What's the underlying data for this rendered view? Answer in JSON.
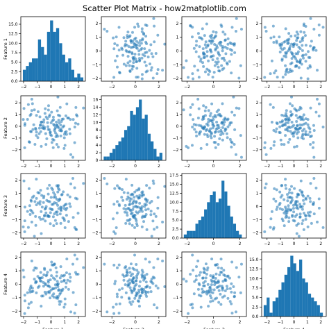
{
  "figure": {
    "title": "Scatter Plot Matrix - how2matplotlib.com",
    "point_color": "#1f77b4",
    "bar_color": "#1f77b4"
  },
  "chart_data": {
    "type": "scatter",
    "grid": false,
    "features": [
      "Feature 1",
      "Feature 2",
      "Feature 3",
      "Feature 4"
    ],
    "diagonal_type": "bar",
    "histograms": [
      {
        "feature": "Feature 1",
        "bin_edges": [
          -2.05,
          -1.83,
          -1.61,
          -1.39,
          -1.17,
          -0.95,
          -0.73,
          -0.51,
          -0.29,
          -0.07,
          0.15,
          0.37,
          0.59,
          0.81,
          1.03,
          1.25,
          1.47,
          1.69,
          1.91,
          2.13,
          2.35
        ],
        "counts": [
          3,
          4,
          5,
          6,
          6,
          11,
          9,
          7,
          13,
          16,
          13,
          14,
          10,
          7,
          5,
          6,
          3,
          1,
          2,
          1
        ],
        "ylim": [
          0,
          17
        ],
        "yticks": [
          0.0,
          2.5,
          5.0,
          7.5,
          10.0,
          12.5,
          15.0
        ],
        "xlim": [
          -2.2,
          2.5
        ],
        "xticks": [
          -2,
          -1,
          0,
          1,
          2
        ]
      },
      {
        "feature": "Feature 2",
        "bin_edges": [
          -2.7,
          -2.45,
          -2.2,
          -1.95,
          -1.7,
          -1.45,
          -1.2,
          -0.95,
          -0.7,
          -0.45,
          -0.2,
          0.05,
          0.3,
          0.55,
          0.8,
          1.05,
          1.3,
          1.55,
          1.8,
          2.05,
          2.3
        ],
        "counts": [
          1,
          1,
          2,
          3,
          4,
          5,
          6,
          8,
          9,
          13,
          12,
          14,
          16,
          11,
          12,
          7,
          5,
          3,
          1,
          2
        ],
        "ylim": [
          0,
          17
        ],
        "yticks": [
          0,
          2,
          4,
          6,
          8,
          10,
          12,
          14,
          16
        ],
        "xlim": [
          -2.9,
          2.6
        ],
        "xticks": [
          -2,
          0,
          2
        ]
      },
      {
        "feature": "Feature 3",
        "bin_edges": [
          -2.25,
          -2.03,
          -1.81,
          -1.59,
          -1.37,
          -1.15,
          -0.93,
          -0.71,
          -0.49,
          -0.27,
          -0.05,
          0.17,
          0.39,
          0.61,
          0.83,
          1.05,
          1.27,
          1.49,
          1.71,
          1.93,
          2.15
        ],
        "counts": [
          1,
          2,
          2,
          2,
          4,
          5,
          6,
          8,
          10,
          12,
          13,
          10,
          11,
          16,
          13,
          9,
          6,
          4,
          2,
          1
        ],
        "ylim": [
          0,
          18
        ],
        "yticks": [
          0.0,
          2.5,
          5.0,
          7.5,
          10.0,
          12.5,
          15.0,
          17.5
        ],
        "xlim": [
          -2.4,
          2.5
        ],
        "xticks": [
          -2,
          0,
          2
        ]
      },
      {
        "feature": "Feature 4",
        "bin_edges": [
          -2.25,
          -2.03,
          -1.81,
          -1.59,
          -1.37,
          -1.15,
          -0.93,
          -0.71,
          -0.49,
          -0.27,
          -0.05,
          0.17,
          0.39,
          0.61,
          0.83,
          1.05,
          1.27,
          1.49,
          1.71,
          1.93,
          2.15
        ],
        "counts": [
          3,
          5,
          1,
          4,
          5,
          7,
          9,
          11,
          13,
          16,
          14,
          12,
          15,
          10,
          9,
          6,
          5,
          4,
          3,
          1
        ],
        "ylim": [
          0,
          17
        ],
        "yticks": [
          0.0,
          2.5,
          5.0,
          7.5,
          10.0,
          12.5,
          15.0
        ],
        "xlim": [
          -2.4,
          2.4
        ],
        "xticks": [
          -2,
          -1,
          0,
          1,
          2
        ]
      }
    ],
    "scatter_panels": [
      {
        "row": 0,
        "col": 1,
        "xlim": [
          -2.9,
          2.6
        ],
        "ylim": [
          -2.2,
          2.5
        ],
        "xticks": [
          -2,
          0,
          2
        ],
        "yticks": [
          -2,
          -1,
          0,
          1,
          2
        ]
      },
      {
        "row": 0,
        "col": 2,
        "xlim": [
          -2.4,
          2.5
        ],
        "ylim": [
          -2.2,
          2.5
        ],
        "xticks": [
          -2,
          0,
          2
        ],
        "yticks": [
          -2,
          -1,
          0,
          1,
          2
        ]
      },
      {
        "row": 0,
        "col": 3,
        "xlim": [
          -2.4,
          2.4
        ],
        "ylim": [
          -2.2,
          2.5
        ],
        "xticks": [
          -2,
          -1,
          0,
          1,
          2
        ],
        "yticks": [
          -2,
          -1,
          0,
          1,
          2
        ]
      },
      {
        "row": 1,
        "col": 0,
        "xlim": [
          -2.2,
          2.5
        ],
        "ylim": [
          -2.9,
          2.6
        ],
        "xticks": [
          -2,
          -1,
          0,
          1,
          2
        ],
        "yticks": [
          -2,
          -1,
          0,
          1,
          2
        ]
      },
      {
        "row": 1,
        "col": 2,
        "xlim": [
          -2.4,
          2.5
        ],
        "ylim": [
          -2.9,
          2.6
        ],
        "xticks": [
          -2,
          0,
          2
        ],
        "yticks": [
          -2,
          -1,
          0,
          1,
          2
        ]
      },
      {
        "row": 1,
        "col": 3,
        "xlim": [
          -2.4,
          2.4
        ],
        "ylim": [
          -2.9,
          2.6
        ],
        "xticks": [
          -2,
          -1,
          0,
          1,
          2
        ],
        "yticks": [
          -2,
          -1,
          0,
          1,
          2
        ]
      },
      {
        "row": 2,
        "col": 0,
        "xlim": [
          -2.2,
          2.5
        ],
        "ylim": [
          -2.4,
          2.5
        ],
        "xticks": [
          -2,
          -1,
          0,
          1,
          2
        ],
        "yticks": [
          -2,
          -1,
          0,
          1,
          2
        ]
      },
      {
        "row": 2,
        "col": 1,
        "xlim": [
          -2.9,
          2.6
        ],
        "ylim": [
          -2.4,
          2.5
        ],
        "xticks": [
          -2,
          0,
          2
        ],
        "yticks": [
          -2,
          -1,
          0,
          1,
          2
        ]
      },
      {
        "row": 2,
        "col": 3,
        "xlim": [
          -2.4,
          2.4
        ],
        "ylim": [
          -2.4,
          2.5
        ],
        "xticks": [
          -2,
          -1,
          0,
          1,
          2
        ],
        "yticks": [
          -2,
          -1,
          0,
          1,
          2
        ]
      },
      {
        "row": 3,
        "col": 0,
        "xlim": [
          -2.2,
          2.5
        ],
        "ylim": [
          -2.4,
          2.4
        ],
        "xticks": [
          -2,
          -1,
          0,
          1,
          2
        ],
        "yticks": [
          -2,
          -1,
          0,
          1,
          2
        ]
      },
      {
        "row": 3,
        "col": 1,
        "xlim": [
          -2.9,
          2.6
        ],
        "ylim": [
          -2.4,
          2.4
        ],
        "xticks": [
          -2,
          0,
          2
        ],
        "yticks": [
          -2,
          -1,
          0,
          1,
          2
        ]
      },
      {
        "row": 3,
        "col": 2,
        "xlim": [
          -2.4,
          2.5
        ],
        "ylim": [
          -2.4,
          2.4
        ],
        "xticks": [
          -2,
          0,
          2
        ],
        "yticks": [
          -2,
          -1,
          0,
          1,
          2
        ]
      }
    ],
    "samples": [
      [
        -1.17,
        -1.54,
        0.37,
        1.22
      ],
      [
        1.62,
        0.58,
        -0.83,
        -0.61
      ],
      [
        0.49,
        -0.05,
        1.1,
        -1.05
      ],
      [
        -0.19,
        1.39,
        0.39,
        0.15
      ],
      [
        0.98,
        -0.68,
        -1.07,
        0.67
      ],
      [
        -0.72,
        0.35,
        -0.39,
        -1.63
      ],
      [
        0.64,
        0.89,
        0.52,
        -0.74
      ],
      [
        0.12,
        -1.12,
        1.28,
        -0.32
      ],
      [
        0.41,
        0.11,
        -1.3,
        0.61
      ],
      [
        -0.39,
        -0.62,
        -0.14,
        -0.03
      ],
      [
        -0.81,
        0.8,
        0.17,
        0.44
      ],
      [
        0.25,
        -0.36,
        -0.56,
        1.51
      ],
      [
        1.21,
        0.71,
        0.88,
        0.3
      ],
      [
        -1.49,
        -0.44,
        -0.28,
        -0.25
      ],
      [
        -0.18,
        1.76,
        -0.76,
        -0.12
      ],
      [
        -0.52,
        0.56,
        0.78,
        0.7
      ],
      [
        0.32,
        -0.55,
        -1.06,
        -0.04
      ],
      [
        0.55,
        -0.12,
        0.43,
        -0.47
      ],
      [
        0.04,
        1.2,
        1.4,
        1.65
      ],
      [
        -0.47,
        -0.09,
        -0.67,
        1.1
      ],
      [
        0.56,
        0.52,
        -0.16,
        -0.4
      ],
      [
        -0.75,
        -0.45,
        -0.98,
        0.88
      ],
      [
        -1.06,
        0.93,
        0.12,
        0.17
      ],
      [
        0.73,
        -0.38,
        -0.31,
        -0.44
      ],
      [
        -0.94,
        1.24,
        0.27,
        -0.24
      ],
      [
        0.1,
        0.47,
        -0.24,
        -0.85
      ],
      [
        0.53,
        -1.76,
        1.36,
        0.03
      ],
      [
        1.28,
        0.71,
        -1.14,
        -0.38
      ],
      [
        0.42,
        -0.72,
        0.55,
        0.9
      ],
      [
        -0.58,
        0.04,
        -0.95,
        -0.87
      ],
      [
        -0.05,
        -0.49,
        -1.31,
        0.33
      ],
      [
        1.02,
        -0.52,
        0.12,
        -1.09
      ],
      [
        0.17,
        0.78,
        -0.78,
        0.47
      ],
      [
        0.33,
        -0.11,
        0.7,
        -0.28
      ],
      [
        0.97,
        -0.98,
        -0.16,
        0.3
      ],
      [
        -0.25,
        0.31,
        1.36,
        -0.59
      ],
      [
        -1.46,
        1.02,
        0.47,
        -0.13
      ],
      [
        0.77,
        -0.38,
        0.88,
        0.64
      ],
      [
        0.07,
        -1.38,
        0.15,
        1.44
      ],
      [
        -1.13,
        -0.17,
        -0.76,
        0.11
      ],
      [
        0.45,
        0.08,
        -0.41,
        -0.02
      ],
      [
        0.94,
        0.03,
        0.04,
        0.24
      ],
      [
        -1.4,
        1.34,
        -0.36,
        -0.55
      ],
      [
        0.36,
        -0.89,
        -0.43,
        1.22
      ],
      [
        0.01,
        0.3,
        0.69,
        -0.43
      ],
      [
        -0.07,
        -0.54,
        -0.17,
        -1.02
      ],
      [
        -0.76,
        0.12,
        1.23,
        0.46
      ],
      [
        -0.44,
        1.1,
        -0.2,
        -0.59
      ],
      [
        1.11,
        -0.45,
        0.18,
        0.1
      ],
      [
        -1.26,
        0.13,
        0.78,
        1.04
      ],
      [
        0.72,
        -0.22,
        -0.23,
        -1.29
      ],
      [
        0.18,
        0.55,
        1.06,
        -0.34
      ],
      [
        -0.64,
        -0.14,
        -0.05,
        0.49
      ],
      [
        1.41,
        0.58,
        -0.01,
        0.51
      ],
      [
        -0.31,
        -1.06,
        0.46,
        0.7
      ],
      [
        -0.13,
        0.83,
        -0.76,
        -0.54
      ],
      [
        0.89,
        0.62,
        1.11,
        0.61
      ],
      [
        -0.37,
        -1.55,
        -0.49,
        -0.73
      ],
      [
        0.25,
        0.07,
        0.29,
        1.47
      ],
      [
        -1.11,
        -0.26,
        -1.44,
        0.2
      ],
      [
        -0.09,
        0.97,
        0.36,
        -0.2
      ],
      [
        0.63,
        -0.35,
        0.57,
        -1.5
      ],
      [
        -0.54,
        0.35,
        0.65,
        -0.15
      ],
      [
        1.13,
        -0.69,
        -0.67,
        0.85
      ],
      [
        0.19,
        0.16,
        -1.46,
        -0.71
      ],
      [
        -0.35,
        0.79,
        -0.01,
        0.63
      ],
      [
        0.48,
        -0.85,
        0.08,
        -0.03
      ],
      [
        -1.71,
        0.59,
        -0.38,
        -0.63
      ],
      [
        -0.48,
        -0.21,
        -0.73,
        1.18
      ],
      [
        0.81,
        0.6,
        0.91,
        -0.49
      ],
      [
        -0.2,
        -0.27,
        0.94,
        0.28
      ],
      [
        0.46,
        1.32,
        -0.62,
        0.21
      ],
      [
        -0.86,
        -0.63,
        1.02,
        -0.15
      ],
      [
        0.39,
        0.36,
        0.24,
        -1.03
      ],
      [
        -0.04,
        -0.72,
        -0.47,
        1.06
      ],
      [
        0.7,
        0.11,
        -0.05,
        -0.64
      ],
      [
        -0.55,
        -0.18,
        0.3,
        0.13
      ],
      [
        1.08,
        0.89,
        -0.25,
        -0.22
      ],
      [
        -0.96,
        -0.96,
        1.06,
        0.58
      ],
      [
        0.21,
        -1.17,
        0.7,
        -0.97
      ],
      [
        -0.26,
        0.64,
        -0.74,
        0.89
      ],
      [
        0.6,
        0.29,
        1.27,
        -1.28
      ],
      [
        -0.79,
        0.08,
        0.37,
        0.26
      ],
      [
        0.86,
        -0.06,
        -0.86,
        -0.37
      ],
      [
        0.28,
        -0.22,
        0.9,
        0.36
      ],
      [
        -0.42,
        1.5,
        -1.1,
        0.05
      ],
      [
        -1.32,
        -0.27,
        -0.49,
        -0.52
      ],
      [
        0.67,
        1.61,
        -0.57,
        0.47
      ],
      [
        0.03,
        -0.79,
        -0.22,
        0.64
      ],
      [
        -0.68,
        0.37,
        0.84,
        -0.88
      ],
      [
        1.35,
        -0.24,
        0.21,
        0.76
      ],
      [
        0.42,
        -1.54,
        1.58,
        -0.92
      ],
      [
        -0.23,
        -0.03,
        -0.67,
        -0.12
      ],
      [
        -1.06,
        -0.5,
        0.61,
        1.19
      ],
      [
        0.76,
        0.41,
        -0.1,
        0.19
      ],
      [
        -1.91,
        0.08,
        -1.09,
        -0.81
      ],
      [
        0.16,
        -1.82,
        0.17,
        1.42
      ],
      [
        1.9,
        0.87,
        0.58,
        1.87
      ],
      [
        -0.12,
        -0.29,
        1.61,
        -0.63
      ],
      [
        0.71,
        -0.82,
        -1.29,
        1.31
      ],
      [
        -1.35,
        1.93,
        0.68,
        -0.29
      ],
      [
        0.5,
        2.5,
        1.52,
        -0.18
      ],
      [
        -0.71,
        -1.71,
        -2.06,
        0.22
      ],
      [
        1.44,
        -2.41,
        1.71,
        -2.06
      ],
      [
        -1.92,
        -1.83,
        -1.92,
        -2.18
      ],
      [
        -1.9,
        0.23,
        -0.05,
        -1.23
      ],
      [
        -1.97,
        1.52,
        1.94,
        0.53
      ],
      [
        2.36,
        1.56,
        1.75,
        1.24
      ],
      [
        1.81,
        1.6,
        -1.73,
        -1.53
      ],
      [
        1.59,
        -2.64,
        2.13,
        1.49
      ],
      [
        -1.55,
        -1.36,
        0.06,
        -0.41
      ],
      [
        -1.4,
        2.31,
        -1.18,
        1.73
      ],
      [
        1.15,
        1.91,
        -0.13,
        1.88
      ],
      [
        1.02,
        -1.62,
        -1.61,
        -1.49
      ],
      [
        -1.44,
        -0.46,
        0.4,
        -1.35
      ],
      [
        1.85,
        0.98,
        -1.76,
        0.74
      ],
      [
        -1.65,
        1.85,
        -1.59,
        -1.75
      ],
      [
        0.53,
        0.95,
        1.6,
        -0.9
      ],
      [
        -1.6,
        -1.32,
        1.35,
        -1.46
      ],
      [
        1.97,
        0.19,
        -0.51,
        0.75
      ],
      [
        -1.52,
        0.92,
        -0.61,
        -0.59
      ],
      [
        1.72,
        -1.39,
        1.42,
        -2.15
      ],
      [
        -2.02,
        0.58,
        -1.55,
        1.04
      ],
      [
        1.79,
        0.26,
        0.62,
        0.88
      ],
      [
        -1.07,
        -0.78,
        2.07,
        -0.64
      ],
      [
        1.73,
        -0.06,
        -1.6,
        2.17
      ],
      [
        -1.21,
        1.4,
        -2.26,
        0.38
      ],
      [
        1.38,
        -0.63,
        0.73,
        0.22
      ],
      [
        -0.84,
        -0.16,
        -0.82,
        0.45
      ],
      [
        0.95,
        -1.89,
        -0.94,
        -1.71
      ]
    ]
  }
}
